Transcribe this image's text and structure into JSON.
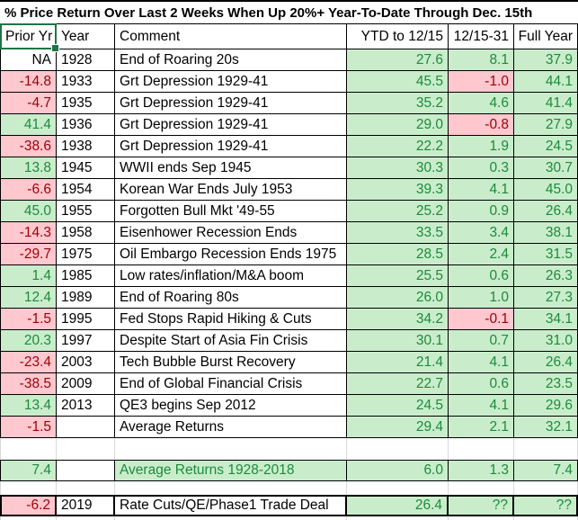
{
  "title": "% Price Return Over Last 2 Weeks When Up 20%+ Year-To-Date Through Dec. 15th",
  "colors": {
    "green-bg": "#c9edcb",
    "green-text": "#1d8a3d",
    "pink-bg": "#ffc7ce",
    "red-text": "#9c0006",
    "selection": "#217346",
    "gridline": "#d9d9d9"
  },
  "table": {
    "headers": [
      "Prior Yr",
      "Year",
      "Comment",
      "YTD to 12/15",
      "12/15-31",
      "Full Year"
    ],
    "rows": [
      {
        "prior": "NA",
        "prior_style": "plain",
        "year": "1928",
        "comment": "End of Roaring 20s",
        "ytd": "27.6",
        "mid": "8.1",
        "mid_style": "green",
        "full": "37.9"
      },
      {
        "prior": "-14.8",
        "prior_style": "pink",
        "year": "1933",
        "comment": "Grt Depression 1929-41",
        "ytd": "45.5",
        "mid": "-1.0",
        "mid_style": "pink",
        "full": "44.1"
      },
      {
        "prior": "-4.7",
        "prior_style": "pink",
        "year": "1935",
        "comment": "Grt Depression 1929-41",
        "ytd": "35.2",
        "mid": "4.6",
        "mid_style": "green",
        "full": "41.4"
      },
      {
        "prior": "41.4",
        "prior_style": "green",
        "year": "1936",
        "comment": "Grt Depression 1929-41",
        "ytd": "29.0",
        "mid": "-0.8",
        "mid_style": "pink",
        "full": "27.9"
      },
      {
        "prior": "-38.6",
        "prior_style": "pink",
        "year": "1938",
        "comment": "Grt Depression 1929-41",
        "ytd": "22.2",
        "mid": "1.9",
        "mid_style": "green",
        "full": "24.5"
      },
      {
        "prior": "13.8",
        "prior_style": "green",
        "year": "1945",
        "comment": "WWII ends Sep 1945",
        "ytd": "30.3",
        "mid": "0.3",
        "mid_style": "green",
        "full": "30.7"
      },
      {
        "prior": "-6.6",
        "prior_style": "pink",
        "year": "1954",
        "comment": "Korean War Ends July 1953",
        "ytd": "39.3",
        "mid": "4.1",
        "mid_style": "green",
        "full": "45.0"
      },
      {
        "prior": "45.0",
        "prior_style": "green",
        "year": "1955",
        "comment": "Forgotten Bull Mkt '49-55",
        "ytd": "25.2",
        "mid": "0.9",
        "mid_style": "green",
        "full": "26.4"
      },
      {
        "prior": "-14.3",
        "prior_style": "pink",
        "year": "1958",
        "comment": "Eisenhower Recession Ends",
        "ytd": "33.5",
        "mid": "3.4",
        "mid_style": "green",
        "full": "38.1"
      },
      {
        "prior": "-29.7",
        "prior_style": "pink",
        "year": "1975",
        "comment": "Oil Embargo Recession Ends 1975",
        "ytd": "28.5",
        "mid": "2.4",
        "mid_style": "green",
        "full": "31.5"
      },
      {
        "prior": "1.4",
        "prior_style": "green",
        "year": "1985",
        "comment": "Low rates/inflation/M&A boom",
        "ytd": "25.5",
        "mid": "0.6",
        "mid_style": "green",
        "full": "26.3"
      },
      {
        "prior": "12.4",
        "prior_style": "green",
        "year": "1989",
        "comment": "End of Roaring 80s",
        "ytd": "26.0",
        "mid": "1.0",
        "mid_style": "green",
        "full": "27.3"
      },
      {
        "prior": "-1.5",
        "prior_style": "pink",
        "year": "1995",
        "comment": "Fed Stops Rapid Hiking & Cuts",
        "ytd": "34.2",
        "mid": "-0.1",
        "mid_style": "pink",
        "full": "34.1"
      },
      {
        "prior": "20.3",
        "prior_style": "green",
        "year": "1997",
        "comment": "Despite Start of Asia Fin Crisis",
        "ytd": "30.1",
        "mid": "0.7",
        "mid_style": "green",
        "full": "31.0"
      },
      {
        "prior": "-23.4",
        "prior_style": "pink",
        "year": "2003",
        "comment": "Tech Bubble Burst Recovery",
        "ytd": "21.4",
        "mid": "4.1",
        "mid_style": "green",
        "full": "26.4"
      },
      {
        "prior": "-38.5",
        "prior_style": "pink",
        "year": "2009",
        "comment": "End of Global Financial Crisis",
        "ytd": "22.7",
        "mid": "0.6",
        "mid_style": "green",
        "full": "23.5"
      },
      {
        "prior": "13.4",
        "prior_style": "green",
        "year": "2013",
        "comment": "QE3 begins Sep 2012",
        "ytd": "24.5",
        "mid": "4.1",
        "mid_style": "green",
        "full": "29.6"
      },
      {
        "prior": "-1.5",
        "prior_style": "pink",
        "year": "",
        "comment": "Average Returns",
        "ytd": "29.4",
        "mid": "2.1",
        "mid_style": "green",
        "full": "32.1"
      },
      {
        "row_style": "blank"
      },
      {
        "row_style": "bt",
        "prior": "7.4",
        "prior_style": "green",
        "year": "",
        "comment": "Average Returns 1928-2018",
        "comment_style": "green",
        "ytd": "6.0",
        "mid": "1.3",
        "mid_style": "green",
        "full": "7.4"
      },
      {
        "row_style": "blank blank-short"
      },
      {
        "row_style": "medium",
        "prior": "-6.2",
        "prior_style": "pink",
        "year": "2019",
        "comment": "Rate Cuts/QE/Phase1 Trade Deal",
        "ytd": "26.4",
        "mid": "??",
        "mid_style": "green",
        "full": "??"
      },
      {
        "row_style": "blank blank-bottom"
      }
    ]
  }
}
